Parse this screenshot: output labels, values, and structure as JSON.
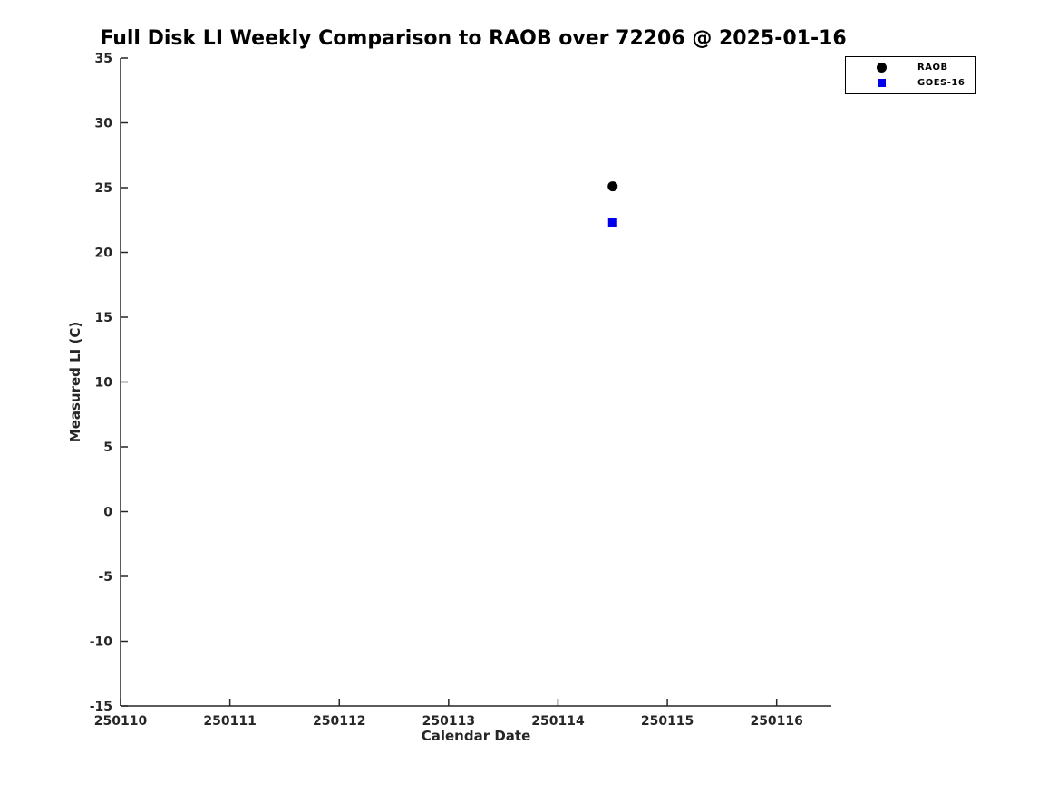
{
  "chart_data": {
    "type": "scatter",
    "title": "Full Disk LI Weekly Comparison to RAOB over 72206 @ 2025-01-16",
    "xlabel": "Calendar Date",
    "ylabel": "Measured LI (C)",
    "xlim": [
      250110,
      250116.5
    ],
    "ylim": [
      -15,
      35
    ],
    "xticks": [
      250110,
      250111,
      250112,
      250113,
      250114,
      250115,
      250116
    ],
    "yticks": [
      -15,
      -10,
      -5,
      0,
      5,
      10,
      15,
      20,
      25,
      30,
      35
    ],
    "grid": false,
    "axis_color": "#262626",
    "title_color": "#000000",
    "legend": {
      "position": "top-right",
      "entries": [
        {
          "label": "RAOB",
          "marker": "circle",
          "color": "#000000"
        },
        {
          "label": "GOES-16",
          "marker": "square",
          "color": "#0000EE"
        }
      ]
    },
    "series": [
      {
        "name": "RAOB",
        "marker": "circle",
        "color": "#000000",
        "points": [
          {
            "x": 250114.5,
            "y": 25.1
          }
        ]
      },
      {
        "name": "GOES-16",
        "marker": "square",
        "color": "#0000EE",
        "points": [
          {
            "x": 250114.5,
            "y": 22.3
          }
        ]
      }
    ]
  }
}
